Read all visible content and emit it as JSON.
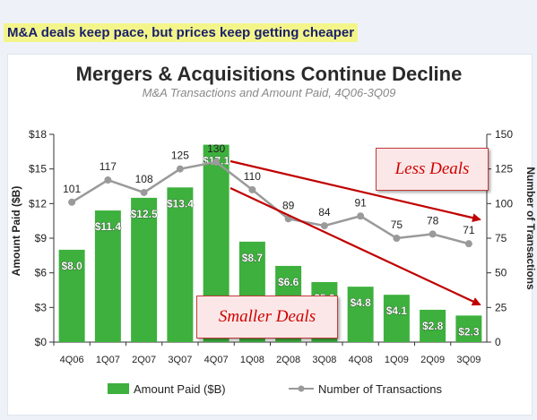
{
  "headline": "M&A deals keep pace, but prices keep getting cheaper",
  "callouts": {
    "less_deals": "Less Deals",
    "smaller_deals": "Smaller Deals"
  },
  "colors": {
    "bar": "#3db03d",
    "bar_label": "#ffffff",
    "line": "#9a9a9a",
    "callout_text": "#d00000",
    "arrow": "#c00000",
    "headline_bg": "#f3f58a",
    "headline_text": "#1a1f6b"
  },
  "chart_data": {
    "type": "bar",
    "title": "Mergers & Acquisitions Continue Decline",
    "subtitle": "M&A Transactions and Amount Paid, 4Q06-3Q09",
    "categories": [
      "4Q06",
      "1Q07",
      "2Q07",
      "3Q07",
      "4Q07",
      "1Q08",
      "2Q08",
      "3Q08",
      "4Q08",
      "1Q09",
      "2Q09",
      "3Q09"
    ],
    "series": [
      {
        "name": "Amount Paid ($B)",
        "type": "bar",
        "axis": "left",
        "values": [
          8.0,
          11.4,
          12.5,
          13.4,
          17.1,
          8.7,
          6.6,
          5.2,
          4.8,
          4.1,
          2.8,
          2.3
        ],
        "labels": [
          "$8.0",
          "$11.4",
          "$12.5",
          "$13.4",
          "$17.1",
          "$8.7",
          "$6.6",
          "$5.2",
          "$4.8",
          "$4.1",
          "$2.8",
          "$2.3"
        ]
      },
      {
        "name": "Number of Transactions",
        "type": "line",
        "axis": "right",
        "values": [
          101,
          117,
          108,
          125,
          130,
          110,
          89,
          84,
          91,
          75,
          78,
          71
        ],
        "labels": [
          "101",
          "117",
          "108",
          "125",
          "130",
          "110",
          "89",
          "84",
          "91",
          "75",
          "78",
          "71"
        ]
      }
    ],
    "ylabel": "Amount Paid ($B)",
    "ylim": [
      0,
      18
    ],
    "yticks": [
      "$0",
      "$3",
      "$6",
      "$9",
      "$12",
      "$15",
      "$18"
    ],
    "y2label": "Number of Transactions",
    "y2lim": [
      0,
      150
    ],
    "y2ticks": [
      "0",
      "25",
      "50",
      "75",
      "100",
      "125",
      "150"
    ],
    "grid": false,
    "legend": "bottom"
  }
}
